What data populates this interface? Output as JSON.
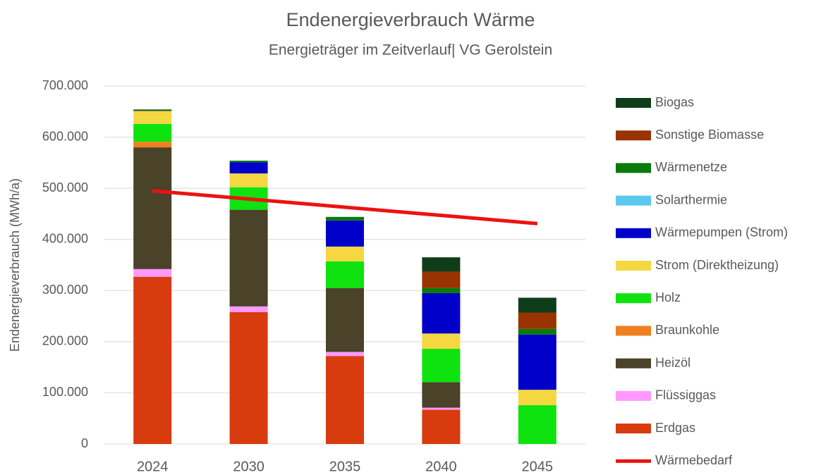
{
  "chart_data": {
    "type": "bar",
    "stacked": true,
    "title": "Endenergieverbrauch Wärme",
    "subtitle": "Energieträger im Zeitverlauf| VG Gerolstein",
    "y_label": "Endenergieverbrauch (MWh/a)",
    "categories": [
      "2024",
      "2030",
      "2035",
      "2040",
      "2045"
    ],
    "ylim": [
      0,
      700000
    ],
    "yticks": [
      0,
      {
        "value": 100000,
        "label": "100.000"
      },
      {
        "value": 200000,
        "label": "200.000"
      },
      {
        "value": 300000,
        "label": "300.000"
      },
      {
        "value": 400000,
        "label": "400.000"
      },
      {
        "value": 500000,
        "label": "500.000"
      },
      {
        "value": 600000,
        "label": "600.000"
      },
      {
        "value": 700000,
        "label": "700.000"
      }
    ],
    "grid": true,
    "legend": "right",
    "series": [
      {
        "name": "Erdgas",
        "color": "#d83b0e",
        "values": [
          327000,
          258000,
          172000,
          67000,
          0
        ]
      },
      {
        "name": "Flüssiggas",
        "color": "#ff99ff",
        "values": [
          15000,
          11000,
          8000,
          4000,
          0
        ]
      },
      {
        "name": "Heizöl",
        "color": "#4a4229",
        "values": [
          238000,
          189000,
          125000,
          50000,
          0
        ]
      },
      {
        "name": "Braunkohle",
        "color": "#f07f22",
        "values": [
          11000,
          0,
          0,
          0,
          0
        ]
      },
      {
        "name": "Holz",
        "color": "#0fe30f",
        "values": [
          35000,
          44000,
          52000,
          65000,
          76000
        ]
      },
      {
        "name": "Strom (Direktheizung)",
        "color": "#f5d742",
        "values": [
          25000,
          27000,
          29000,
          30000,
          30000
        ]
      },
      {
        "name": "Wärmepumpen (Strom)",
        "color": "#0000c8",
        "values": [
          0,
          22000,
          51000,
          79000,
          108000
        ]
      },
      {
        "name": "Solarthermie",
        "color": "#5bc8f0",
        "values": [
          0,
          0,
          0,
          0,
          0
        ]
      },
      {
        "name": "Wärmenetze",
        "color": "#0a7a0a",
        "values": [
          1000,
          3000,
          7000,
          10000,
          11000
        ]
      },
      {
        "name": "Sonstige Biomasse",
        "color": "#993300",
        "values": [
          0,
          0,
          0,
          32000,
          32000
        ]
      },
      {
        "name": "Biogas",
        "color": "#0f3d1a",
        "values": [
          2000,
          0,
          0,
          28000,
          29000
        ]
      },
      {
        "name": "Wärmebedarf",
        "color": "#ee1111",
        "type": "line",
        "values": [
          495000,
          479000,
          463000,
          447000,
          431000
        ]
      }
    ]
  }
}
